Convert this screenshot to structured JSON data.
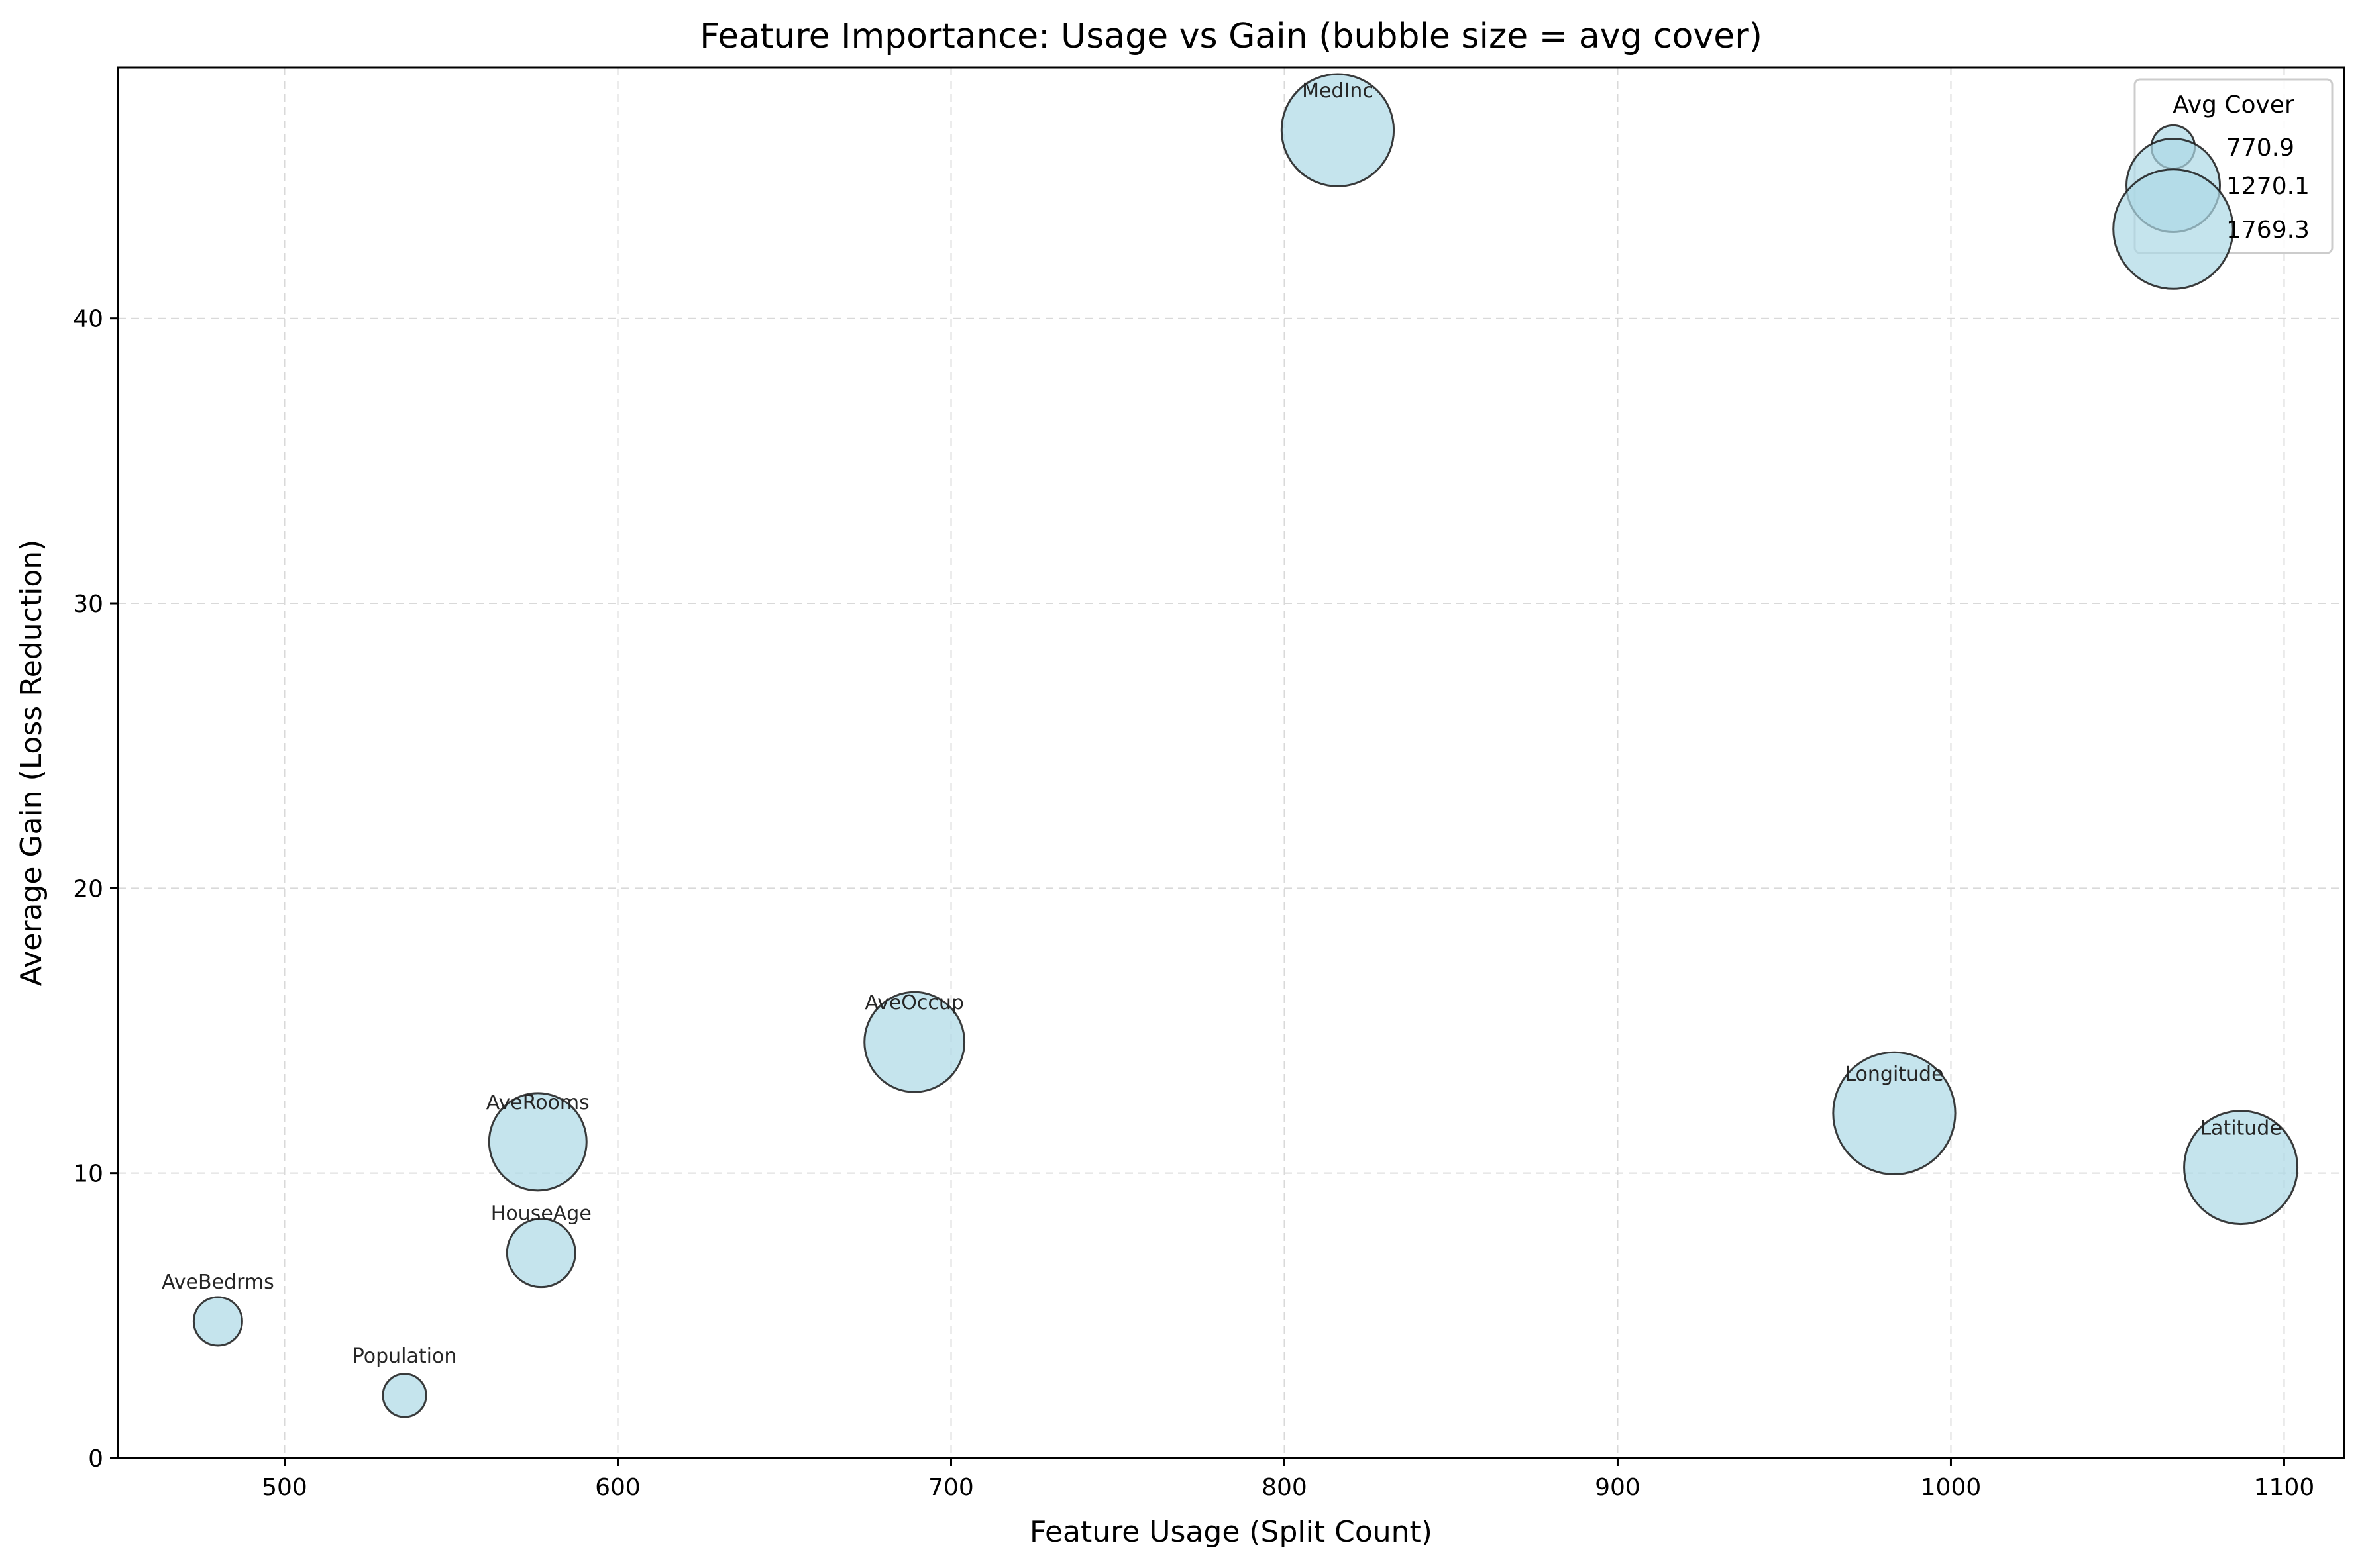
{
  "chart_data": {
    "type": "scatter",
    "title": "Feature Importance: Usage vs Gain (bubble size = avg cover)",
    "xlabel": "Feature Usage (Split Count)",
    "ylabel": "Average Gain (Loss Reduction)",
    "xlim": [
      450,
      1118
    ],
    "ylim": [
      0,
      48.8
    ],
    "xticks": [
      500,
      600,
      700,
      800,
      900,
      1000,
      1100
    ],
    "yticks": [
      0,
      10,
      20,
      30,
      40
    ],
    "grid": true,
    "legend_position": "top-right",
    "legend_title": "Avg Cover",
    "legend_entries": [
      {
        "label": "770.9",
        "cover": 770.9
      },
      {
        "label": "1270.1",
        "cover": 1270.1
      },
      {
        "label": "1769.3",
        "cover": 1769.3
      }
    ],
    "colors": {
      "bubble_fill": "#add8e6",
      "bubble_edge": "#1a1a1a",
      "grid": "#d9d9d9"
    },
    "points": [
      {
        "label": "MedInc",
        "x": 816,
        "y": 46.6,
        "cover": 1580
      },
      {
        "label": "AveOccup",
        "x": 689,
        "y": 14.6,
        "cover": 1370
      },
      {
        "label": "AveRooms",
        "x": 576,
        "y": 11.1,
        "cover": 1330
      },
      {
        "label": "HouseAge",
        "x": 577,
        "y": 7.2,
        "cover": 960
      },
      {
        "label": "AveBedrms",
        "x": 480,
        "y": 4.8,
        "cover": 800
      },
      {
        "label": "Population",
        "x": 536,
        "y": 2.2,
        "cover": 770.9
      },
      {
        "label": "Longitude",
        "x": 983,
        "y": 12.1,
        "cover": 1769.3
      },
      {
        "label": "Latitude",
        "x": 1087,
        "y": 10.2,
        "cover": 1600
      }
    ]
  }
}
